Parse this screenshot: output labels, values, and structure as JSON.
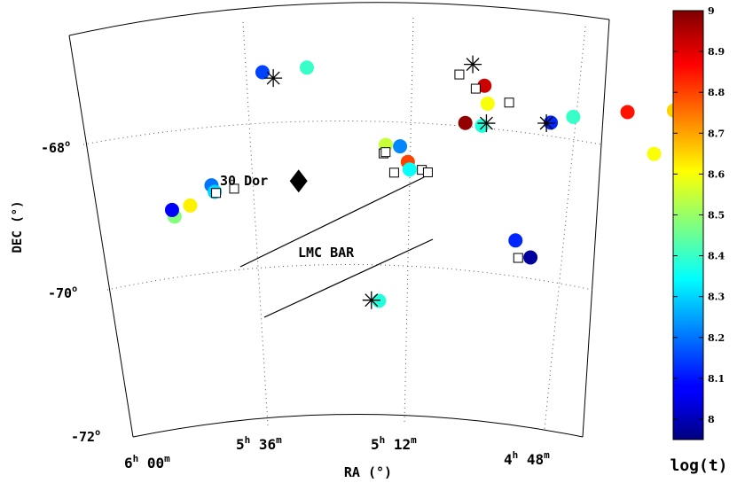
{
  "chart_data": {
    "type": "scatter",
    "projection": "sky map, curved RA/DEC grid",
    "axes": {
      "xlabel": "RA (°)",
      "ylabel": "DEC (°)",
      "ra_ticks": [
        {
          "value": "6h 00m",
          "h": "6",
          "m": "00"
        },
        {
          "value": "5h 36m",
          "h": "5",
          "m": "36"
        },
        {
          "value": "5h 12m",
          "h": "5",
          "m": "12"
        },
        {
          "value": "4h 48m",
          "h": "4",
          "m": "48"
        }
      ],
      "dec_ticks": [
        "-68°",
        "-70°",
        "-72°"
      ],
      "dec_tick_parts": [
        {
          "num": "-68",
          "deg": "o"
        },
        {
          "num": "-70",
          "deg": "o"
        },
        {
          "num": "-72",
          "deg": "o"
        }
      ],
      "grid": "dotted"
    },
    "annotations": {
      "dor_label": "30 Dor",
      "bar_label": "LMC BAR"
    },
    "colorbar": {
      "label": "log(t)",
      "min": 7.95,
      "max": 9.0,
      "ticks": [
        "8",
        "8.1",
        "8.2",
        "8.3",
        "8.4",
        "8.5",
        "8.6",
        "8.7",
        "8.8",
        "8.9",
        "9"
      ],
      "colormap": "jet"
    },
    "clusters": [
      {
        "ra_h": 5.955,
        "dec": -69.22,
        "logt": 8.48
      },
      {
        "ra_h": 5.96,
        "dec": -69.12,
        "logt": 8.08
      },
      {
        "ra_h": 5.915,
        "dec": -69.14,
        "logt": 8.62
      },
      {
        "ra_h": 5.86,
        "dec": -68.95,
        "logt": 8.2
      },
      {
        "ra_h": 5.853,
        "dec": -69.05,
        "logt": 8.3
      },
      {
        "ra_h": 5.725,
        "dec": -67.55,
        "logt": 8.15
      },
      {
        "ra_h": 5.62,
        "dec": -67.55,
        "logt": 8.4
      },
      {
        "ra_h": 5.43,
        "dec": -68.6,
        "logt": 8.55
      },
      {
        "ra_h": 5.395,
        "dec": -68.6,
        "logt": 8.22
      },
      {
        "ra_h": 5.375,
        "dec": -68.8,
        "logt": 8.8
      },
      {
        "ra_h": 5.37,
        "dec": -68.9,
        "logt": 8.35
      },
      {
        "ra_h": 5.24,
        "dec": -68.12,
        "logt": 8.98
      },
      {
        "ra_h": 5.2,
        "dec": -67.55,
        "logt": 8.92
      },
      {
        "ra_h": 5.19,
        "dec": -67.78,
        "logt": 8.6
      },
      {
        "ra_h": 5.2,
        "dec": -68.1,
        "logt": 8.38
      },
      {
        "ra_h": 5.04,
        "dec": -67.75,
        "logt": 8.12
      },
      {
        "ra_h": 4.99,
        "dec": -67.55,
        "logt": 8.4
      },
      {
        "ra_h": 4.87,
        "dec": -67.15,
        "logt": 8.85
      },
      {
        "ra_h": 4.8,
        "dec": -67.5,
        "logt": 8.6
      },
      {
        "ra_h": 4.77,
        "dec": -66.8,
        "logt": 8.65
      },
      {
        "ra_h": 5.1,
        "dec": -69.5,
        "logt": 8.12
      },
      {
        "ra_h": 5.06,
        "dec": -69.65,
        "logt": 7.98
      },
      {
        "ra_h": 5.44,
        "dec": -70.75,
        "logt": 8.38
      }
    ],
    "open_squares": [
      {
        "ra_h": 5.85,
        "dec": -69.07
      },
      {
        "ra_h": 5.805,
        "dec": -69.07
      },
      {
        "ra_h": 5.435,
        "dec": -68.72
      },
      {
        "ra_h": 5.43,
        "dec": -68.7
      },
      {
        "ra_h": 5.408,
        "dec": -68.97
      },
      {
        "ra_h": 5.34,
        "dec": -68.88
      },
      {
        "ra_h": 5.325,
        "dec": -68.9
      },
      {
        "ra_h": 5.26,
        "dec": -67.48
      },
      {
        "ra_h": 5.22,
        "dec": -67.62
      },
      {
        "ra_h": 5.14,
        "dec": -67.68
      },
      {
        "ra_h": 5.09,
        "dec": -69.72
      }
    ],
    "asterisks": [
      {
        "ra_h": 5.7,
        "dec": -67.65
      },
      {
        "ra_h": 5.23,
        "dec": -67.3
      },
      {
        "ra_h": 5.19,
        "dec": -68.05
      },
      {
        "ra_h": 5.05,
        "dec": -67.78
      },
      {
        "ra_h": 5.46,
        "dec": -70.75
      }
    ],
    "diamond": {
      "ra_h": 5.645,
      "dec": -69.1
    }
  }
}
